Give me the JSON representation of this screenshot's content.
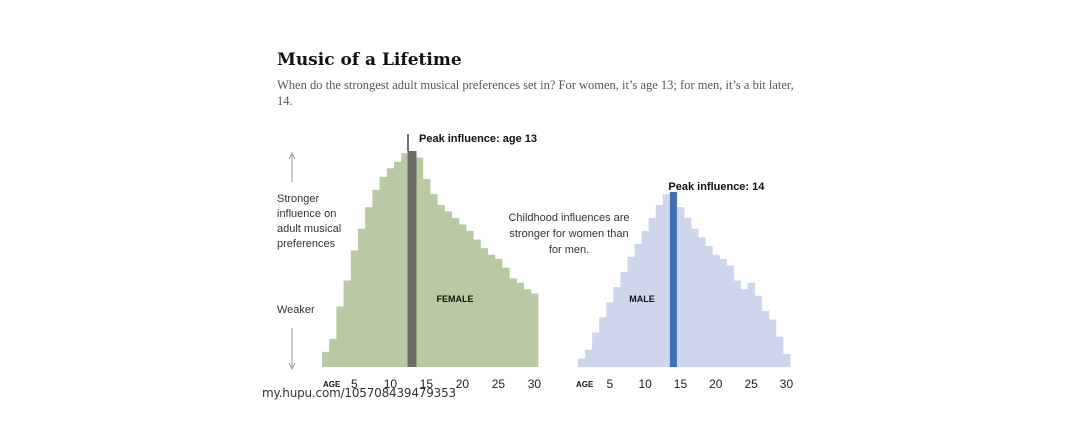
{
  "header": {
    "title": "Music of a Lifetime",
    "subtitle": "When do the strongest adult musical preferences set in? For women, it’s age 13; for men, it’s a bit later, 14."
  },
  "axis_label_stronger": "Stronger influence on adult musical preferences",
  "axis_label_weaker": "Weaker",
  "note": "Childhood influences are stronger for women than for men.",
  "watermark": "my.hupu.com/105708439479353",
  "colors": {
    "female_bar": "#b8c9a4",
    "female_peak": "#6b6b68",
    "male_bar": "#cdd6ec",
    "male_peak": "#3e6fae",
    "arrow": "#999999"
  },
  "chart_data": [
    {
      "type": "bar",
      "name": "FEMALE",
      "x_axis_label": "AGE",
      "x_ticks": [
        5,
        10,
        15,
        20,
        25,
        30
      ],
      "xlim": [
        1,
        30
      ],
      "ylim": [
        0,
        100
      ],
      "peak_age": 13,
      "peak_label": "Peak influence: age 13",
      "series_label": "FEMALE",
      "ages": [
        1,
        2,
        3,
        4,
        5,
        6,
        7,
        8,
        9,
        10,
        11,
        12,
        13,
        14,
        15,
        16,
        17,
        18,
        19,
        20,
        21,
        22,
        23,
        24,
        25,
        26,
        27,
        28,
        29,
        30
      ],
      "values": [
        7,
        13,
        28,
        40,
        54,
        64,
        74,
        82,
        88,
        92,
        95,
        99,
        100,
        97,
        87,
        80,
        75,
        72,
        69,
        66,
        63,
        59,
        55,
        52,
        50,
        46,
        41,
        39,
        36,
        34
      ]
    },
    {
      "type": "bar",
      "name": "MALE",
      "x_axis_label": "AGE",
      "x_ticks": [
        5,
        10,
        15,
        20,
        25,
        30
      ],
      "xlim": [
        1,
        30
      ],
      "ylim": [
        0,
        100
      ],
      "peak_age": 14,
      "peak_label": "Peak influence: 14",
      "series_label": "MALE",
      "ages": [
        1,
        2,
        3,
        4,
        5,
        6,
        7,
        8,
        9,
        10,
        11,
        12,
        13,
        14,
        15,
        16,
        17,
        18,
        19,
        20,
        21,
        22,
        23,
        24,
        25,
        26,
        27,
        28,
        29,
        30
      ],
      "values": [
        4,
        8,
        16,
        23,
        30,
        37,
        44,
        51,
        57,
        63,
        69,
        75,
        80,
        81,
        74,
        69,
        64,
        60,
        56,
        52,
        50,
        47,
        40,
        36,
        39,
        33,
        26,
        22,
        14,
        6
      ]
    }
  ]
}
